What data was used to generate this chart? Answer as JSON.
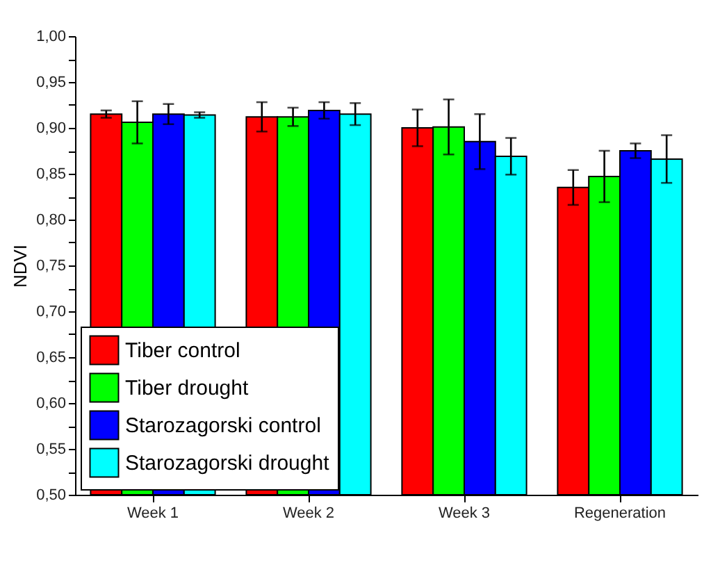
{
  "chart_data": {
    "type": "bar",
    "ylabel": "NDVI",
    "categories": [
      "Week 1",
      "Week 2",
      "Week 3",
      "Regeneration"
    ],
    "series": [
      {
        "name": "Tiber control",
        "color": "#ff0000",
        "values": [
          0.915,
          0.912,
          0.9,
          0.835
        ],
        "errors": [
          0.004,
          0.016,
          0.02,
          0.019
        ]
      },
      {
        "name": "Tiber drought",
        "color": "#00ff00",
        "values": [
          0.906,
          0.912,
          0.901,
          0.847
        ],
        "errors": [
          0.023,
          0.01,
          0.03,
          0.028
        ]
      },
      {
        "name": "Starozagorski control",
        "color": "#0000ff",
        "values": [
          0.915,
          0.919,
          0.885,
          0.875
        ],
        "errors": [
          0.011,
          0.009,
          0.03,
          0.008
        ]
      },
      {
        "name": "Starozagorski drought",
        "color": "#00ffff",
        "values": [
          0.914,
          0.915,
          0.869,
          0.866
        ],
        "errors": [
          0.003,
          0.012,
          0.02,
          0.026
        ]
      }
    ],
    "ylim": [
      0.5,
      1.0
    ],
    "yticks": [
      {
        "value": 0.5,
        "label": "0,50"
      },
      {
        "value": 0.525,
        "label": null
      },
      {
        "value": 0.55,
        "label": "0,55"
      },
      {
        "value": 0.575,
        "label": null
      },
      {
        "value": 0.6,
        "label": "0,60"
      },
      {
        "value": 0.625,
        "label": null
      },
      {
        "value": 0.65,
        "label": "0,65"
      },
      {
        "value": 0.675,
        "label": null
      },
      {
        "value": 0.7,
        "label": "0,70"
      },
      {
        "value": 0.725,
        "label": null
      },
      {
        "value": 0.75,
        "label": "0,75"
      },
      {
        "value": 0.775,
        "label": null
      },
      {
        "value": 0.8,
        "label": "0,80"
      },
      {
        "value": 0.825,
        "label": null
      },
      {
        "value": 0.85,
        "label": "0,85"
      },
      {
        "value": 0.875,
        "label": null
      },
      {
        "value": 0.9,
        "label": "0,90"
      },
      {
        "value": 0.925,
        "label": null
      },
      {
        "value": 0.95,
        "label": "0,95"
      },
      {
        "value": 0.975,
        "label": null
      },
      {
        "value": 1.0,
        "label": "1,00"
      }
    ],
    "grid": false,
    "legend": "bottom left"
  }
}
